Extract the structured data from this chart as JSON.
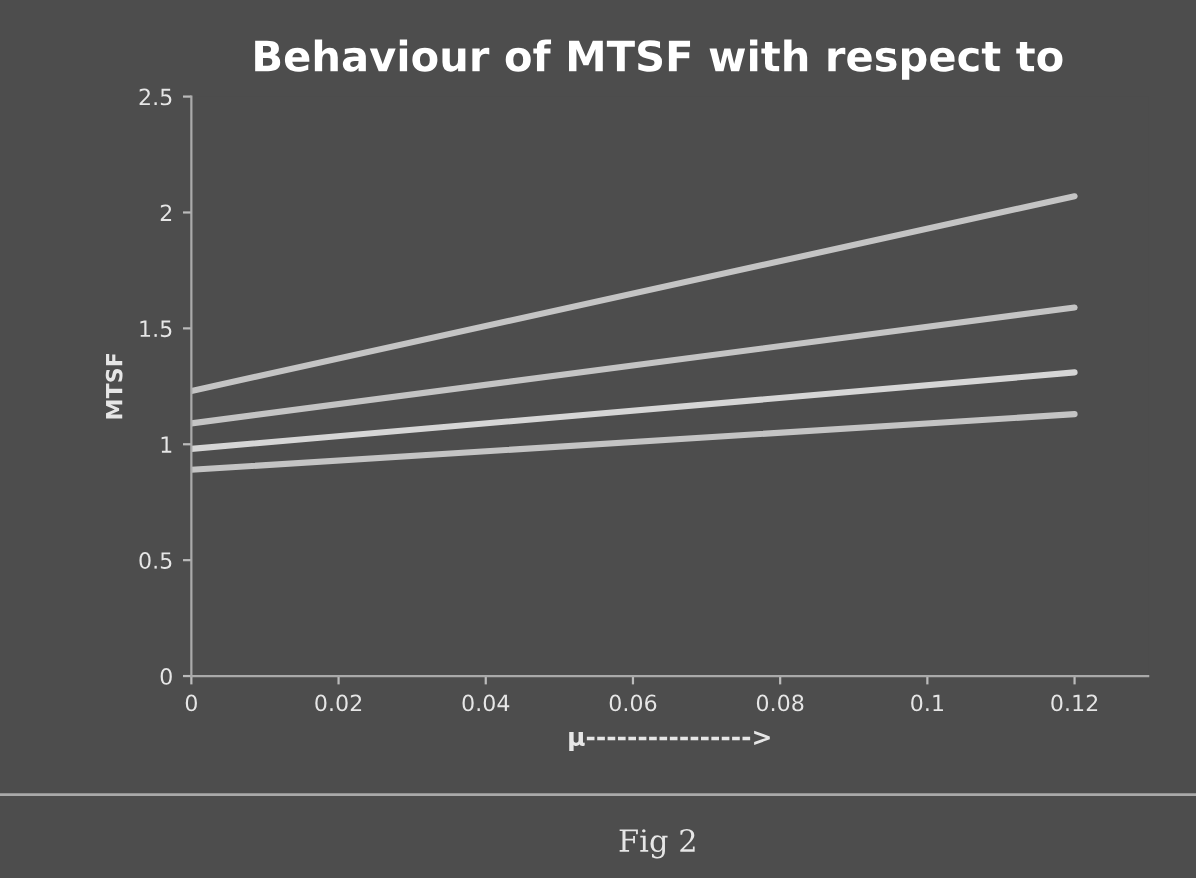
{
  "chart_data": {
    "type": "line",
    "title": "Behaviour of MTSF with respect to",
    "xlabel": "μ---------------->",
    "ylabel": "MTSF",
    "annotations": [
      "Fig 2"
    ],
    "x": [
      0,
      0.12
    ],
    "series": [
      {
        "color": "#c4c4c4",
        "values": [
          1.23,
          2.07
        ]
      },
      {
        "color": "#c4c4c4",
        "values": [
          1.09,
          1.59
        ]
      },
      {
        "color": "#d6d6d6",
        "values": [
          0.98,
          1.31
        ]
      },
      {
        "color": "#c4c4c4",
        "values": [
          0.89,
          1.13
        ]
      }
    ],
    "xlim": [
      0,
      0.13
    ],
    "xticks": [
      0,
      0.02,
      0.04,
      0.06,
      0.08,
      0.1,
      0.12
    ],
    "ylim": [
      0,
      2.5
    ],
    "yticks": [
      0,
      0.5,
      1,
      1.5,
      2,
      2.5
    ],
    "grid": false,
    "legend": false,
    "marker": "none",
    "line_style": "solid"
  }
}
